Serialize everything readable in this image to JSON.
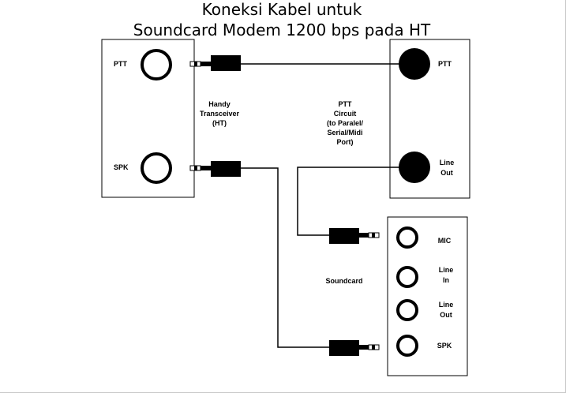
{
  "title": {
    "line1": "Koneksi Kabel untuk",
    "line2": "Soundcard Modem 1200 bps pada HT"
  },
  "ht_box": {
    "ptt_label": "PTT",
    "spk_label": "SPK",
    "caption": [
      "Handy",
      "Transceiver",
      "(HT)"
    ]
  },
  "ptt_box": {
    "ptt_label": "PTT",
    "lineout_label": [
      "Line",
      "Out"
    ],
    "caption": [
      "PTT",
      "Circuit",
      "(to Paralel/",
      "Serial/Midi",
      "Port)"
    ]
  },
  "soundcard_box": {
    "caption": "Soundcard",
    "mic_label": "MIC",
    "linein_label": [
      "Line",
      "In"
    ],
    "lineout_label": [
      "Line",
      "Out"
    ],
    "spk_label": "SPK"
  },
  "colors": {
    "line": "#000000",
    "jack_fill_dark": "#000000",
    "border": "#c8c8c8"
  }
}
